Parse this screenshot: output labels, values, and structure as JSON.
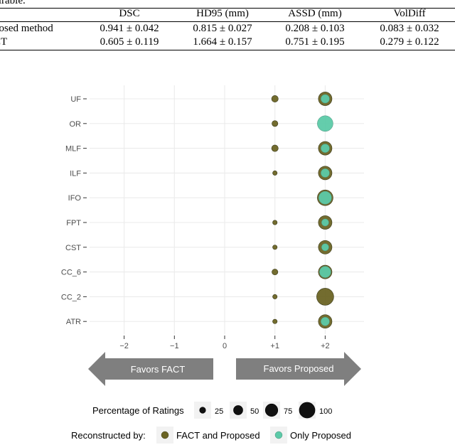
{
  "table": {
    "caption": "sirable.",
    "headers": [
      "DSC",
      "HD95 (mm)",
      "ASSD (mm)",
      "VolDiff"
    ],
    "rows": [
      {
        "label": "posed method",
        "values": [
          "0.941 ± 0.042",
          "0.815 ± 0.027",
          "0.208 ± 0.103",
          "0.083 ± 0.032"
        ]
      },
      {
        "label": "CT",
        "values": [
          "0.605 ± 0.119",
          "1.664 ± 0.157",
          "0.751 ± 0.195",
          "0.279 ± 0.122"
        ]
      }
    ]
  },
  "chart_data": {
    "type": "scatter",
    "categories": [
      "UF",
      "OR",
      "MLF",
      "ILF",
      "IFO",
      "FPT",
      "CST",
      "CC_6",
      "CC_2",
      "ATR"
    ],
    "x_ticks": [
      "−2",
      "−1",
      "0",
      "+1",
      "+2"
    ],
    "x_values": [
      -2,
      -1,
      0,
      1,
      2
    ],
    "xlim": [
      -2.3,
      2.8
    ],
    "grid": true,
    "series": [
      {
        "name": "FACT and Proposed",
        "color": "#6b6424",
        "points": [
          {
            "category": "UF",
            "x": 1,
            "pct": 25
          },
          {
            "category": "OR",
            "x": 1,
            "pct": 20
          },
          {
            "category": "MLF",
            "x": 1,
            "pct": 25
          },
          {
            "category": "ILF",
            "x": 1,
            "pct": 10
          },
          {
            "category": "FPT",
            "x": 1,
            "pct": 10
          },
          {
            "category": "CST",
            "x": 1,
            "pct": 10
          },
          {
            "category": "CC_6",
            "x": 1,
            "pct": 20
          },
          {
            "category": "CC_2",
            "x": 1,
            "pct": 10
          },
          {
            "category": "ATR",
            "x": 1,
            "pct": 10
          },
          {
            "category": "UF",
            "x": 2,
            "pct": 75
          },
          {
            "category": "MLF",
            "x": 2,
            "pct": 75
          },
          {
            "category": "ILF",
            "x": 2,
            "pct": 75
          },
          {
            "category": "IFO",
            "x": 2,
            "pct": 90
          },
          {
            "category": "FPT",
            "x": 2,
            "pct": 75
          },
          {
            "category": "CST",
            "x": 2,
            "pct": 75
          },
          {
            "category": "CC_6",
            "x": 2,
            "pct": 75
          },
          {
            "category": "CC_2",
            "x": 2,
            "pct": 100
          },
          {
            "category": "ATR",
            "x": 2,
            "pct": 75
          }
        ]
      },
      {
        "name": "Only Proposed",
        "color": "#5ccaa8",
        "points": [
          {
            "category": "UF",
            "x": 2,
            "pct": 40
          },
          {
            "category": "OR",
            "x": 2,
            "pct": 90
          },
          {
            "category": "MLF",
            "x": 2,
            "pct": 40
          },
          {
            "category": "ILF",
            "x": 2,
            "pct": 40
          },
          {
            "category": "IFO",
            "x": 2,
            "pct": 70
          },
          {
            "category": "FPT",
            "x": 2,
            "pct": 30
          },
          {
            "category": "CST",
            "x": 2,
            "pct": 30
          },
          {
            "category": "CC_6",
            "x": 2,
            "pct": 60
          },
          {
            "category": "ATR",
            "x": 2,
            "pct": 40
          }
        ]
      }
    ],
    "arrows": {
      "left": "Favors FACT",
      "right": "Favors Proposed"
    },
    "size_legend": {
      "title": "Percentage of Ratings",
      "values": [
        25,
        50,
        75,
        100
      ],
      "labels": [
        "25",
        "50",
        "75",
        "100"
      ]
    },
    "color_legend": {
      "title": "Reconstructed by:",
      "labels": [
        "FACT and Proposed",
        "Only Proposed"
      ]
    },
    "colors": {
      "panel": "#ffffff",
      "grid": "#ebebeb",
      "arrow": "#7f7f7f",
      "arrow_text": "#ffffff",
      "axis_text": "#4d4d4d",
      "legend_key_bg": "#f2f2f2"
    }
  }
}
